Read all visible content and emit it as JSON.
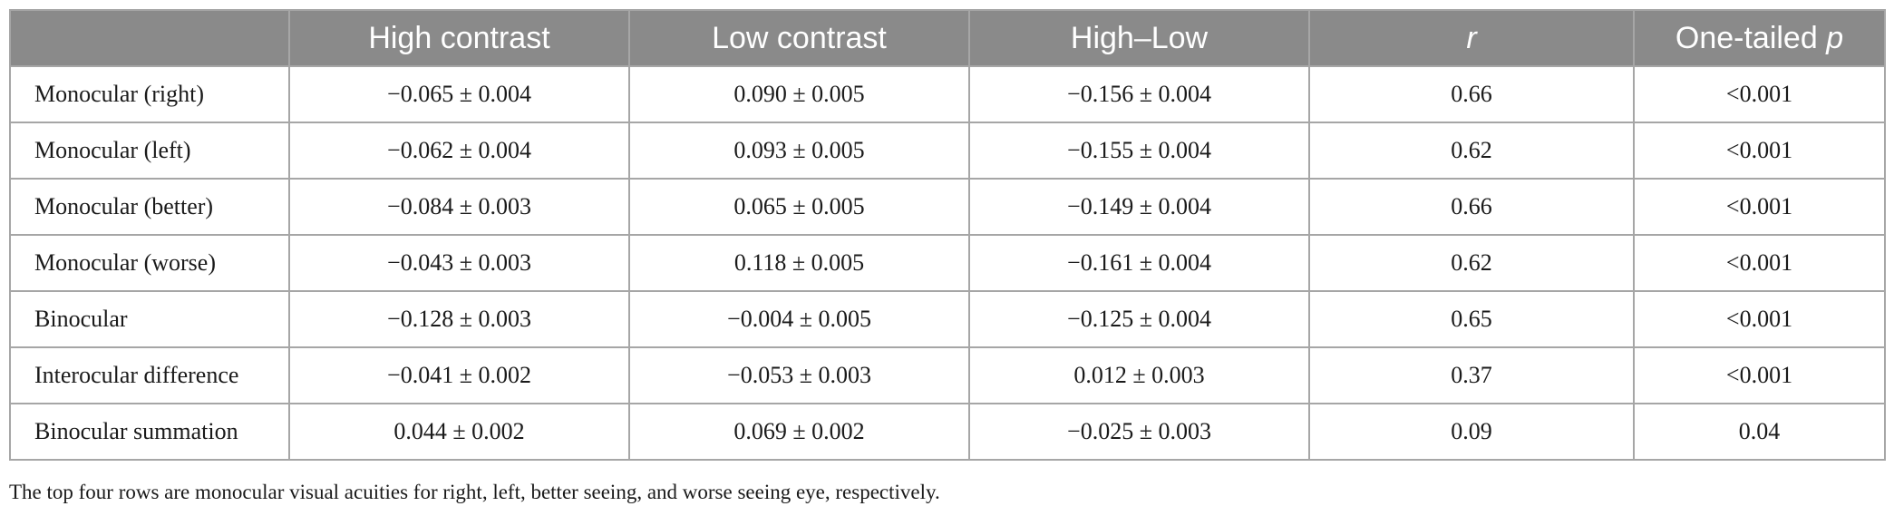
{
  "table": {
    "headers": [
      "",
      "High contrast",
      "Low contrast",
      "High–Low",
      "r",
      "One-tailed p"
    ],
    "rows": [
      [
        "Monocular (right)",
        "−0.065 ± 0.004",
        "0.090 ± 0.005",
        "−0.156 ± 0.004",
        "0.66",
        "<0.001"
      ],
      [
        "Monocular (left)",
        "−0.062 ± 0.004",
        "0.093 ± 0.005",
        "−0.155 ± 0.004",
        "0.62",
        "<0.001"
      ],
      [
        "Monocular (better)",
        "−0.084 ± 0.003",
        "0.065 ± 0.005",
        "−0.149 ± 0.004",
        "0.66",
        "<0.001"
      ],
      [
        "Monocular (worse)",
        "−0.043 ± 0.003",
        "0.118 ± 0.005",
        "−0.161 ± 0.004",
        "0.62",
        "<0.001"
      ],
      [
        "Binocular",
        "−0.128 ± 0.003",
        "−0.004 ± 0.005",
        "−0.125 ± 0.004",
        "0.65",
        "<0.001"
      ],
      [
        "Interocular difference",
        "−0.041 ± 0.002",
        "−0.053 ± 0.003",
        "0.012 ± 0.003",
        "0.37",
        "<0.001"
      ],
      [
        "Binocular summation",
        "0.044 ± 0.002",
        "0.069 ± 0.002",
        "−0.025 ± 0.003",
        "0.09",
        "0.04"
      ]
    ]
  },
  "footnote": "The top four rows are monocular visual acuities for right, left, better seeing, and worse seeing eye, respectively."
}
